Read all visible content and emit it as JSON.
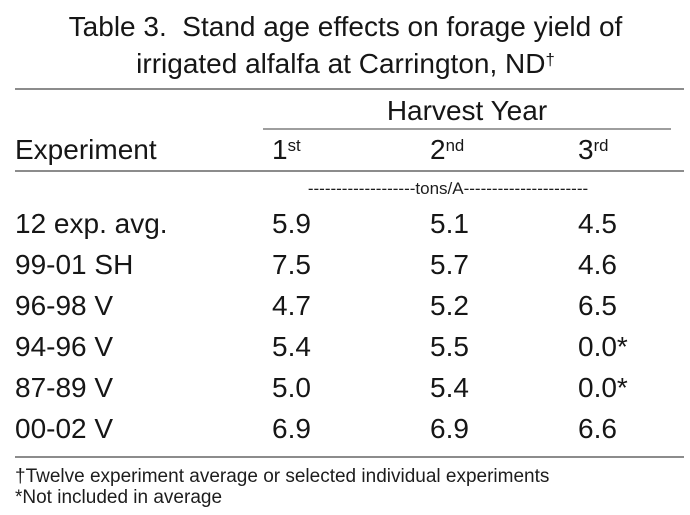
{
  "title": {
    "line1": "Table 3.  Stand age effects on forage yield of",
    "line2": "irrigated alfalfa at Carrington, ND",
    "dagger": "†"
  },
  "table": {
    "group_header": "Harvest Year",
    "experiment_header": "Experiment",
    "year_columns": [
      {
        "base": "1",
        "sup": "st"
      },
      {
        "base": "2",
        "sup": "nd"
      },
      {
        "base": "3",
        "sup": "rd"
      }
    ],
    "units_line": "-------------------tons/A----------------------",
    "rows": [
      {
        "experiment": "12 exp. avg.",
        "y1": "5.9",
        "y2": "5.1",
        "y3": "4.5"
      },
      {
        "experiment": "99-01 SH",
        "y1": "7.5",
        "y2": "5.7",
        "y3": "4.6"
      },
      {
        "experiment": "96-98 V",
        "y1": "4.7",
        "y2": "5.2",
        "y3": "6.5"
      },
      {
        "experiment": "94-96 V",
        "y1": "5.4",
        "y2": "5.5",
        "y3": "0.0*"
      },
      {
        "experiment": "87-89 V",
        "y1": "5.0",
        "y2": "5.4",
        "y3": "0.0*"
      },
      {
        "experiment": "00-02 V",
        "y1": "6.9",
        "y2": "6.9",
        "y3": "6.6"
      }
    ]
  },
  "footnotes": {
    "dagger_note": "†Twelve experiment average or selected individual experiments",
    "asterisk_note": "*Not included in average"
  },
  "colors": {
    "text": "#161616",
    "rule": "#8c8c8c",
    "background": "#ffffff"
  },
  "chart_data": {
    "type": "table",
    "title": "Table 3. Stand age effects on forage yield of irrigated alfalfa at Carrington, ND†",
    "units": "tons/A",
    "columns": [
      "Experiment",
      "Harvest Year 1st",
      "Harvest Year 2nd",
      "Harvest Year 3rd"
    ],
    "rows": [
      [
        "12 exp. avg.",
        5.9,
        5.1,
        4.5
      ],
      [
        "99-01 SH",
        7.5,
        5.7,
        4.6
      ],
      [
        "96-98 V",
        4.7,
        5.2,
        6.5
      ],
      [
        "94-96 V",
        5.4,
        5.5,
        "0.0*"
      ],
      [
        "87-89 V",
        5.0,
        5.4,
        "0.0*"
      ],
      [
        "00-02 V",
        6.9,
        6.9,
        6.6
      ]
    ],
    "footnotes": [
      "†Twelve experiment average or selected individual experiments",
      "*Not included in average"
    ]
  }
}
